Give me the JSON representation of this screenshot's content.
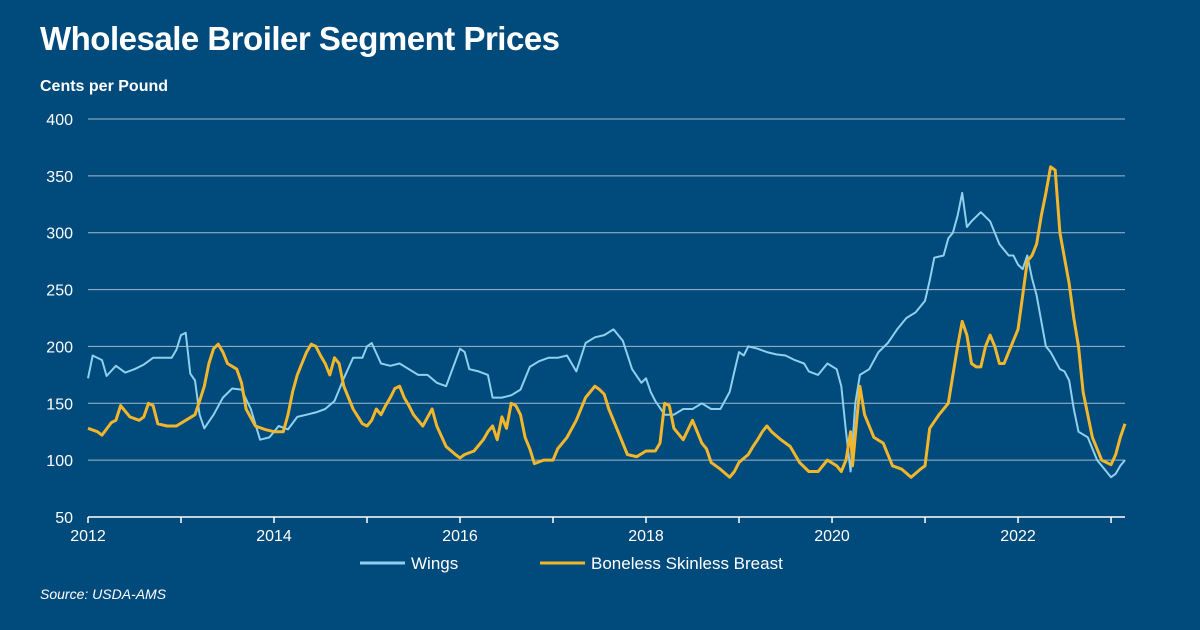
{
  "title": "Wholesale Broiler Segment Prices",
  "y_unit_label": "Cents per Pound",
  "source": "Source: USDA-AMS",
  "colors": {
    "background": "#004a7c",
    "wings": "#8fd0ee",
    "breast": "#f2b62b",
    "grid": "#c9d7e3"
  },
  "chart_data": {
    "type": "line",
    "title": "Wholesale Broiler Segment Prices",
    "xlabel": "",
    "ylabel": "Cents per Pound",
    "xlim": [
      2012,
      2023.15
    ],
    "ylim": [
      50,
      400
    ],
    "y_ticks": [
      50,
      100,
      150,
      200,
      250,
      300,
      350,
      400
    ],
    "x_ticks": [
      2012,
      2014,
      2016,
      2018,
      2020,
      2022
    ],
    "grid": "horizontal",
    "legend_position": "bottom-center",
    "series": [
      {
        "name": "Wings",
        "color": "#8fd0ee",
        "points": [
          [
            2012.0,
            172
          ],
          [
            2012.05,
            192
          ],
          [
            2012.15,
            188
          ],
          [
            2012.2,
            174
          ],
          [
            2012.3,
            183
          ],
          [
            2012.4,
            177
          ],
          [
            2012.5,
            180
          ],
          [
            2012.6,
            184
          ],
          [
            2012.7,
            190
          ],
          [
            2012.8,
            190
          ],
          [
            2012.9,
            190
          ],
          [
            2012.95,
            197
          ],
          [
            2013.0,
            210
          ],
          [
            2013.05,
            212
          ],
          [
            2013.1,
            176
          ],
          [
            2013.15,
            170
          ],
          [
            2013.2,
            140
          ],
          [
            2013.25,
            128
          ],
          [
            2013.35,
            140
          ],
          [
            2013.45,
            155
          ],
          [
            2013.55,
            163
          ],
          [
            2013.65,
            162
          ],
          [
            2013.75,
            145
          ],
          [
            2013.85,
            118
          ],
          [
            2013.95,
            120
          ],
          [
            2014.05,
            130
          ],
          [
            2014.15,
            127
          ],
          [
            2014.25,
            138
          ],
          [
            2014.35,
            140
          ],
          [
            2014.45,
            142
          ],
          [
            2014.55,
            145
          ],
          [
            2014.65,
            152
          ],
          [
            2014.75,
            172
          ],
          [
            2014.85,
            190
          ],
          [
            2014.95,
            190
          ],
          [
            2015.0,
            200
          ],
          [
            2015.05,
            203
          ],
          [
            2015.15,
            185
          ],
          [
            2015.25,
            183
          ],
          [
            2015.35,
            185
          ],
          [
            2015.45,
            180
          ],
          [
            2015.55,
            175
          ],
          [
            2015.65,
            175
          ],
          [
            2015.75,
            168
          ],
          [
            2015.85,
            165
          ],
          [
            2016.0,
            198
          ],
          [
            2016.05,
            195
          ],
          [
            2016.1,
            180
          ],
          [
            2016.2,
            178
          ],
          [
            2016.3,
            175
          ],
          [
            2016.35,
            155
          ],
          [
            2016.45,
            155
          ],
          [
            2016.55,
            157
          ],
          [
            2016.65,
            162
          ],
          [
            2016.75,
            182
          ],
          [
            2016.85,
            187
          ],
          [
            2016.95,
            190
          ],
          [
            2017.05,
            190
          ],
          [
            2017.15,
            192
          ],
          [
            2017.25,
            178
          ],
          [
            2017.35,
            203
          ],
          [
            2017.45,
            208
          ],
          [
            2017.55,
            210
          ],
          [
            2017.65,
            215
          ],
          [
            2017.75,
            205
          ],
          [
            2017.85,
            180
          ],
          [
            2017.95,
            168
          ],
          [
            2018.0,
            172
          ],
          [
            2018.05,
            160
          ],
          [
            2018.1,
            152
          ],
          [
            2018.2,
            140
          ],
          [
            2018.3,
            140
          ],
          [
            2018.4,
            145
          ],
          [
            2018.5,
            145
          ],
          [
            2018.6,
            150
          ],
          [
            2018.7,
            145
          ],
          [
            2018.8,
            145
          ],
          [
            2018.9,
            160
          ],
          [
            2018.95,
            178
          ],
          [
            2019.0,
            195
          ],
          [
            2019.05,
            192
          ],
          [
            2019.1,
            200
          ],
          [
            2019.2,
            198
          ],
          [
            2019.3,
            195
          ],
          [
            2019.4,
            193
          ],
          [
            2019.5,
            192
          ],
          [
            2019.6,
            188
          ],
          [
            2019.7,
            185
          ],
          [
            2019.75,
            178
          ],
          [
            2019.85,
            175
          ],
          [
            2019.95,
            185
          ],
          [
            2020.05,
            180
          ],
          [
            2020.1,
            165
          ],
          [
            2020.15,
            125
          ],
          [
            2020.2,
            90
          ],
          [
            2020.25,
            150
          ],
          [
            2020.3,
            175
          ],
          [
            2020.4,
            180
          ],
          [
            2020.5,
            195
          ],
          [
            2020.6,
            203
          ],
          [
            2020.7,
            215
          ],
          [
            2020.8,
            225
          ],
          [
            2020.9,
            230
          ],
          [
            2021.0,
            240
          ],
          [
            2021.05,
            258
          ],
          [
            2021.1,
            278
          ],
          [
            2021.2,
            280
          ],
          [
            2021.25,
            295
          ],
          [
            2021.3,
            300
          ],
          [
            2021.35,
            315
          ],
          [
            2021.4,
            335
          ],
          [
            2021.45,
            305
          ],
          [
            2021.5,
            310
          ],
          [
            2021.6,
            318
          ],
          [
            2021.7,
            310
          ],
          [
            2021.8,
            290
          ],
          [
            2021.9,
            280
          ],
          [
            2021.95,
            280
          ],
          [
            2022.0,
            272
          ],
          [
            2022.05,
            268
          ],
          [
            2022.1,
            280
          ],
          [
            2022.15,
            260
          ],
          [
            2022.2,
            245
          ],
          [
            2022.3,
            200
          ],
          [
            2022.35,
            195
          ],
          [
            2022.45,
            180
          ],
          [
            2022.5,
            178
          ],
          [
            2022.55,
            170
          ],
          [
            2022.6,
            145
          ],
          [
            2022.65,
            125
          ],
          [
            2022.75,
            120
          ],
          [
            2022.85,
            100
          ],
          [
            2022.95,
            90
          ],
          [
            2023.0,
            85
          ],
          [
            2023.05,
            88
          ],
          [
            2023.1,
            95
          ],
          [
            2023.15,
            100
          ]
        ]
      },
      {
        "name": "Boneless Skinless Breast",
        "color": "#f2b62b",
        "points": [
          [
            2012.0,
            128
          ],
          [
            2012.1,
            125
          ],
          [
            2012.15,
            122
          ],
          [
            2012.25,
            133
          ],
          [
            2012.3,
            135
          ],
          [
            2012.35,
            148
          ],
          [
            2012.45,
            138
          ],
          [
            2012.55,
            135
          ],
          [
            2012.6,
            138
          ],
          [
            2012.65,
            150
          ],
          [
            2012.7,
            148
          ],
          [
            2012.75,
            132
          ],
          [
            2012.85,
            130
          ],
          [
            2012.95,
            130
          ],
          [
            2013.05,
            135
          ],
          [
            2013.15,
            140
          ],
          [
            2013.2,
            152
          ],
          [
            2013.25,
            165
          ],
          [
            2013.3,
            185
          ],
          [
            2013.35,
            198
          ],
          [
            2013.4,
            202
          ],
          [
            2013.45,
            195
          ],
          [
            2013.5,
            185
          ],
          [
            2013.6,
            180
          ],
          [
            2013.65,
            168
          ],
          [
            2013.7,
            145
          ],
          [
            2013.8,
            130
          ],
          [
            2013.9,
            127
          ],
          [
            2014.0,
            125
          ],
          [
            2014.1,
            125
          ],
          [
            2014.15,
            140
          ],
          [
            2014.2,
            160
          ],
          [
            2014.25,
            175
          ],
          [
            2014.3,
            185
          ],
          [
            2014.35,
            195
          ],
          [
            2014.4,
            202
          ],
          [
            2014.45,
            200
          ],
          [
            2014.5,
            192
          ],
          [
            2014.55,
            185
          ],
          [
            2014.6,
            175
          ],
          [
            2014.65,
            190
          ],
          [
            2014.7,
            185
          ],
          [
            2014.75,
            165
          ],
          [
            2014.85,
            145
          ],
          [
            2014.95,
            132
          ],
          [
            2015.0,
            130
          ],
          [
            2015.05,
            135
          ],
          [
            2015.1,
            145
          ],
          [
            2015.15,
            140
          ],
          [
            2015.2,
            148
          ],
          [
            2015.25,
            155
          ],
          [
            2015.3,
            163
          ],
          [
            2015.35,
            165
          ],
          [
            2015.4,
            155
          ],
          [
            2015.45,
            148
          ],
          [
            2015.5,
            140
          ],
          [
            2015.6,
            130
          ],
          [
            2015.7,
            145
          ],
          [
            2015.75,
            130
          ],
          [
            2015.85,
            112
          ],
          [
            2015.95,
            105
          ],
          [
            2016.0,
            102
          ],
          [
            2016.05,
            105
          ],
          [
            2016.15,
            108
          ],
          [
            2016.25,
            118
          ],
          [
            2016.3,
            125
          ],
          [
            2016.35,
            130
          ],
          [
            2016.4,
            118
          ],
          [
            2016.45,
            138
          ],
          [
            2016.5,
            128
          ],
          [
            2016.55,
            150
          ],
          [
            2016.6,
            148
          ],
          [
            2016.65,
            140
          ],
          [
            2016.7,
            120
          ],
          [
            2016.75,
            110
          ],
          [
            2016.8,
            97
          ],
          [
            2016.9,
            100
          ],
          [
            2017.0,
            100
          ],
          [
            2017.05,
            110
          ],
          [
            2017.15,
            120
          ],
          [
            2017.25,
            135
          ],
          [
            2017.35,
            155
          ],
          [
            2017.45,
            165
          ],
          [
            2017.5,
            162
          ],
          [
            2017.55,
            158
          ],
          [
            2017.6,
            145
          ],
          [
            2017.7,
            125
          ],
          [
            2017.8,
            105
          ],
          [
            2017.9,
            103
          ],
          [
            2018.0,
            108
          ],
          [
            2018.1,
            108
          ],
          [
            2018.15,
            115
          ],
          [
            2018.2,
            150
          ],
          [
            2018.25,
            148
          ],
          [
            2018.3,
            128
          ],
          [
            2018.4,
            118
          ],
          [
            2018.5,
            135
          ],
          [
            2018.55,
            125
          ],
          [
            2018.6,
            115
          ],
          [
            2018.65,
            110
          ],
          [
            2018.7,
            98
          ],
          [
            2018.8,
            92
          ],
          [
            2018.9,
            85
          ],
          [
            2018.95,
            90
          ],
          [
            2019.0,
            98
          ],
          [
            2019.1,
            105
          ],
          [
            2019.15,
            112
          ],
          [
            2019.2,
            118
          ],
          [
            2019.25,
            125
          ],
          [
            2019.3,
            130
          ],
          [
            2019.35,
            125
          ],
          [
            2019.45,
            118
          ],
          [
            2019.55,
            112
          ],
          [
            2019.65,
            98
          ],
          [
            2019.75,
            90
          ],
          [
            2019.85,
            90
          ],
          [
            2019.95,
            100
          ],
          [
            2020.05,
            95
          ],
          [
            2020.1,
            90
          ],
          [
            2020.15,
            100
          ],
          [
            2020.2,
            125
          ],
          [
            2020.22,
            95
          ],
          [
            2020.3,
            165
          ],
          [
            2020.35,
            140
          ],
          [
            2020.45,
            120
          ],
          [
            2020.55,
            115
          ],
          [
            2020.65,
            95
          ],
          [
            2020.75,
            92
          ],
          [
            2020.85,
            85
          ],
          [
            2020.95,
            92
          ],
          [
            2021.0,
            95
          ],
          [
            2021.05,
            128
          ],
          [
            2021.15,
            140
          ],
          [
            2021.25,
            150
          ],
          [
            2021.3,
            175
          ],
          [
            2021.35,
            200
          ],
          [
            2021.4,
            222
          ],
          [
            2021.45,
            210
          ],
          [
            2021.5,
            185
          ],
          [
            2021.55,
            182
          ],
          [
            2021.6,
            182
          ],
          [
            2021.65,
            200
          ],
          [
            2021.7,
            210
          ],
          [
            2021.75,
            200
          ],
          [
            2021.8,
            185
          ],
          [
            2021.85,
            185
          ],
          [
            2021.9,
            195
          ],
          [
            2022.0,
            215
          ],
          [
            2022.05,
            245
          ],
          [
            2022.1,
            275
          ],
          [
            2022.15,
            280
          ],
          [
            2022.2,
            290
          ],
          [
            2022.25,
            315
          ],
          [
            2022.3,
            335
          ],
          [
            2022.35,
            358
          ],
          [
            2022.4,
            355
          ],
          [
            2022.45,
            300
          ],
          [
            2022.55,
            255
          ],
          [
            2022.6,
            225
          ],
          [
            2022.65,
            200
          ],
          [
            2022.7,
            160
          ],
          [
            2022.8,
            120
          ],
          [
            2022.9,
            100
          ],
          [
            2023.0,
            96
          ],
          [
            2023.05,
            105
          ],
          [
            2023.1,
            120
          ],
          [
            2023.15,
            132
          ]
        ]
      }
    ]
  }
}
